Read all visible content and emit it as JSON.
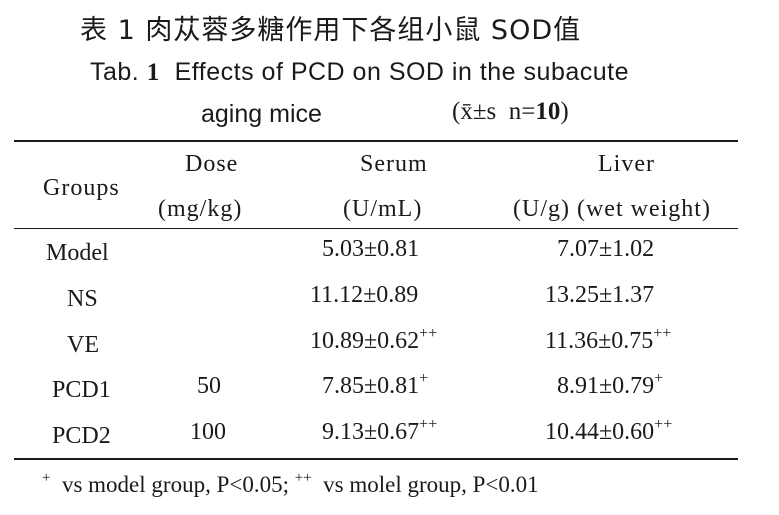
{
  "title_cn": "表 1 肉苁蓉多糖作用下各组小鼠 SOD值",
  "title_en_prefix": "Tab.",
  "title_en_num": "1",
  "title_en_text": "Effects of PCD on SOD in the subacute",
  "title_en_line2": "aging mice",
  "stat_prefix": "(x̄±s",
  "stat_n_label": "n=",
  "stat_n": "10",
  "stat_suffix": ")",
  "headers": {
    "groups": "Groups",
    "dose": "Dose",
    "dose_unit": "(mg/kg)",
    "serum": "Serum",
    "serum_unit": "(U/mL)",
    "liver": "Liver",
    "liver_unit": "(U/g) (wet weight)"
  },
  "rows": [
    {
      "group": "Model",
      "dose": "",
      "serum": "5.03±0.81",
      "serum_sup": "",
      "liver": "7.07±1.02",
      "liver_sup": ""
    },
    {
      "group": "NS",
      "dose": "",
      "serum": "11.12±0.89",
      "serum_sup": "",
      "liver": "13.25±1.37",
      "liver_sup": ""
    },
    {
      "group": "VE",
      "dose": "",
      "serum": "10.89±0.62",
      "serum_sup": "++",
      "liver": "11.36±0.75",
      "liver_sup": "++"
    },
    {
      "group": "PCD1",
      "dose": "50",
      "serum": "7.85±0.81",
      "serum_sup": "+",
      "liver": "8.91±0.79",
      "liver_sup": "+"
    },
    {
      "group": "PCD2",
      "dose": "100",
      "serum": "9.13±0.67",
      "serum_sup": "++",
      "liver": "10.44±0.60",
      "liver_sup": "++"
    }
  ],
  "footnote": {
    "sup1": "+",
    "text1": "vs model group, P<0.05;",
    "sup2": "++",
    "text2": "vs molel group, P<0.01"
  }
}
